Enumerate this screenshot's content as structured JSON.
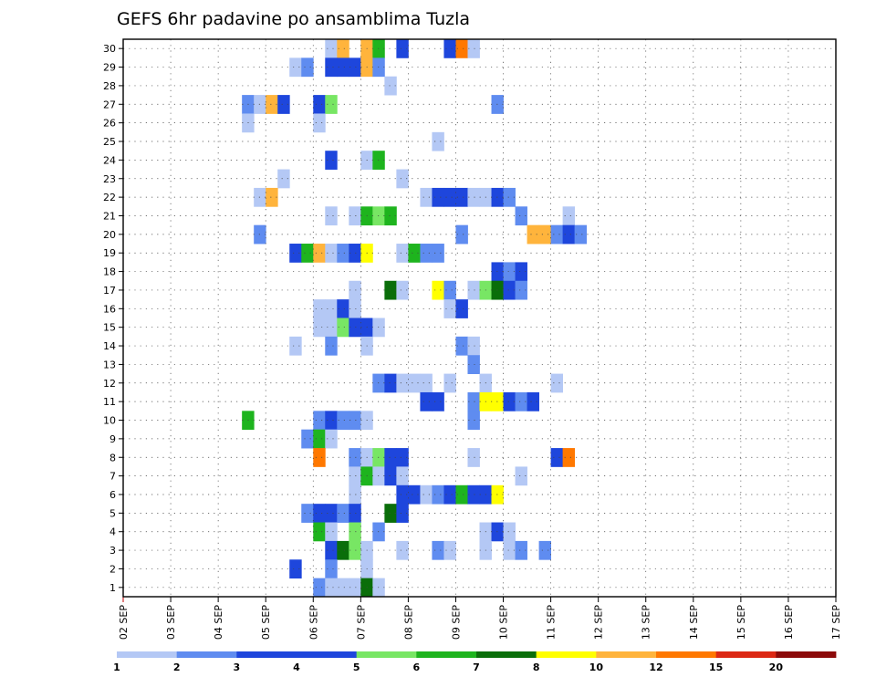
{
  "chart_data": {
    "type": "heatmap",
    "title": "GEFS 6hr padavine po ansamblima Tuzla",
    "xlabel": "",
    "ylabel": "",
    "x_ticks": [
      "02 SEP",
      "03 SEP",
      "04 SEP",
      "05 SEP",
      "06 SEP",
      "07 SEP",
      "08 SEP",
      "09 SEP",
      "10 SEP",
      "11 SEP",
      "12 SEP",
      "13 SEP",
      "14 SEP",
      "15 SEP",
      "16 SEP",
      "17 SEP"
    ],
    "y_ticks": [
      1,
      2,
      3,
      4,
      5,
      6,
      7,
      8,
      9,
      10,
      11,
      12,
      13,
      14,
      15,
      16,
      17,
      18,
      19,
      20,
      21,
      22,
      23,
      24,
      25,
      26,
      27,
      28,
      29,
      30
    ],
    "time_steps": 61,
    "time_step_hours": 6,
    "steps_per_day": 4,
    "grid": true,
    "legend": {
      "position": "bottom",
      "levels": [
        "1",
        "2",
        "3",
        "4",
        "5",
        "6",
        "7",
        "8",
        "10",
        "12",
        "15",
        "20"
      ],
      "colors": [
        "#b4c8f5",
        "#5f8cf0",
        "#1e46dc",
        "#1e46dc",
        "#78e664",
        "#1eb41e",
        "#0a6e0a",
        "#ffff00",
        "#ffb43c",
        "#ff7800",
        "#dc2814",
        "#8c0a0a"
      ]
    },
    "cells": [
      [
        30,
        17,
        1
      ],
      [
        30,
        18,
        10
      ],
      [
        30,
        20,
        10
      ],
      [
        30,
        21,
        6
      ],
      [
        30,
        23,
        3
      ],
      [
        30,
        27,
        3
      ],
      [
        30,
        28,
        12
      ],
      [
        30,
        29,
        1
      ],
      [
        29,
        14,
        1
      ],
      [
        29,
        15,
        2
      ],
      [
        29,
        17,
        3
      ],
      [
        29,
        18,
        3
      ],
      [
        29,
        19,
        3
      ],
      [
        29,
        20,
        10
      ],
      [
        29,
        21,
        2
      ],
      [
        28,
        22,
        1
      ],
      [
        27,
        10,
        2
      ],
      [
        27,
        11,
        1
      ],
      [
        27,
        12,
        10
      ],
      [
        27,
        13,
        3
      ],
      [
        27,
        16,
        4
      ],
      [
        27,
        17,
        5
      ],
      [
        27,
        31,
        2
      ],
      [
        26,
        10,
        1
      ],
      [
        26,
        16,
        1
      ],
      [
        25,
        26,
        1
      ],
      [
        24,
        17,
        3
      ],
      [
        24,
        20,
        1
      ],
      [
        24,
        21,
        6
      ],
      [
        23,
        13,
        1
      ],
      [
        23,
        23,
        1
      ],
      [
        22,
        11,
        1
      ],
      [
        22,
        12,
        10
      ],
      [
        22,
        25,
        1
      ],
      [
        22,
        26,
        4
      ],
      [
        22,
        27,
        3
      ],
      [
        22,
        28,
        4
      ],
      [
        22,
        29,
        1
      ],
      [
        22,
        30,
        1
      ],
      [
        22,
        31,
        3
      ],
      [
        22,
        32,
        2
      ],
      [
        21,
        17,
        1
      ],
      [
        21,
        19,
        1
      ],
      [
        21,
        20,
        6
      ],
      [
        21,
        21,
        5
      ],
      [
        21,
        22,
        6
      ],
      [
        21,
        33,
        2
      ],
      [
        21,
        37,
        1
      ],
      [
        20,
        11,
        2
      ],
      [
        20,
        28,
        2
      ],
      [
        20,
        34,
        10
      ],
      [
        20,
        35,
        10
      ],
      [
        20,
        36,
        2
      ],
      [
        20,
        37,
        3
      ],
      [
        20,
        38,
        2
      ],
      [
        19,
        14,
        3
      ],
      [
        19,
        15,
        6
      ],
      [
        19,
        16,
        10
      ],
      [
        19,
        17,
        1
      ],
      [
        19,
        18,
        2
      ],
      [
        19,
        19,
        4
      ],
      [
        19,
        20,
        8
      ],
      [
        19,
        23,
        1
      ],
      [
        19,
        24,
        6
      ],
      [
        19,
        25,
        2
      ],
      [
        19,
        26,
        2
      ],
      [
        18,
        31,
        3
      ],
      [
        18,
        32,
        2
      ],
      [
        18,
        33,
        4
      ],
      [
        17,
        19,
        1
      ],
      [
        17,
        22,
        7
      ],
      [
        17,
        23,
        1
      ],
      [
        17,
        26,
        8
      ],
      [
        17,
        27,
        2
      ],
      [
        17,
        29,
        1
      ],
      [
        17,
        30,
        5
      ],
      [
        17,
        31,
        7
      ],
      [
        17,
        32,
        3
      ],
      [
        17,
        33,
        2
      ],
      [
        16,
        16,
        1
      ],
      [
        16,
        17,
        1
      ],
      [
        16,
        18,
        4
      ],
      [
        16,
        19,
        1
      ],
      [
        16,
        27,
        1
      ],
      [
        16,
        28,
        3
      ],
      [
        15,
        16,
        1
      ],
      [
        15,
        17,
        1
      ],
      [
        15,
        18,
        5
      ],
      [
        15,
        19,
        3
      ],
      [
        15,
        20,
        4
      ],
      [
        15,
        21,
        1
      ],
      [
        14,
        14,
        1
      ],
      [
        14,
        17,
        2
      ],
      [
        14,
        20,
        1
      ],
      [
        14,
        28,
        2
      ],
      [
        14,
        29,
        1
      ],
      [
        13,
        29,
        2
      ],
      [
        12,
        21,
        2
      ],
      [
        12,
        22,
        3
      ],
      [
        12,
        23,
        1
      ],
      [
        12,
        24,
        1
      ],
      [
        12,
        25,
        1
      ],
      [
        12,
        27,
        1
      ],
      [
        12,
        30,
        1
      ],
      [
        12,
        36,
        1
      ],
      [
        11,
        25,
        3
      ],
      [
        11,
        26,
        3
      ],
      [
        11,
        29,
        2
      ],
      [
        11,
        30,
        9
      ],
      [
        11,
        31,
        9
      ],
      [
        11,
        32,
        3
      ],
      [
        11,
        33,
        2
      ],
      [
        11,
        34,
        3
      ],
      [
        10,
        10,
        6
      ],
      [
        10,
        16,
        2
      ],
      [
        10,
        17,
        3
      ],
      [
        10,
        18,
        2
      ],
      [
        10,
        19,
        2
      ],
      [
        10,
        20,
        1
      ],
      [
        10,
        29,
        2
      ],
      [
        9,
        15,
        2
      ],
      [
        9,
        16,
        6
      ],
      [
        9,
        17,
        1
      ],
      [
        8,
        16,
        12
      ],
      [
        8,
        19,
        2
      ],
      [
        8,
        20,
        1
      ],
      [
        8,
        21,
        5
      ],
      [
        8,
        22,
        3
      ],
      [
        8,
        23,
        3
      ],
      [
        8,
        29,
        1
      ],
      [
        8,
        36,
        3
      ],
      [
        8,
        37,
        12
      ],
      [
        7,
        19,
        1
      ],
      [
        7,
        20,
        6
      ],
      [
        7,
        21,
        1
      ],
      [
        7,
        22,
        4
      ],
      [
        7,
        23,
        1
      ],
      [
        7,
        33,
        1
      ],
      [
        6,
        19,
        1
      ],
      [
        6,
        23,
        4
      ],
      [
        6,
        24,
        3
      ],
      [
        6,
        25,
        1
      ],
      [
        6,
        26,
        2
      ],
      [
        6,
        27,
        3
      ],
      [
        6,
        28,
        6
      ],
      [
        6,
        29,
        4
      ],
      [
        6,
        30,
        4
      ],
      [
        6,
        31,
        9
      ],
      [
        5,
        15,
        2
      ],
      [
        5,
        16,
        3
      ],
      [
        5,
        17,
        3
      ],
      [
        5,
        18,
        2
      ],
      [
        5,
        19,
        3
      ],
      [
        5,
        22,
        7
      ],
      [
        5,
        23,
        3
      ],
      [
        4,
        16,
        6
      ],
      [
        4,
        17,
        1
      ],
      [
        4,
        19,
        5
      ],
      [
        4,
        21,
        2
      ],
      [
        4,
        30,
        1
      ],
      [
        4,
        31,
        4
      ],
      [
        4,
        32,
        1
      ],
      [
        3,
        17,
        4
      ],
      [
        3,
        18,
        7
      ],
      [
        3,
        19,
        5
      ],
      [
        3,
        20,
        1
      ],
      [
        3,
        23,
        1
      ],
      [
        3,
        26,
        2
      ],
      [
        3,
        27,
        1
      ],
      [
        3,
        30,
        1
      ],
      [
        3,
        32,
        1
      ],
      [
        3,
        33,
        2
      ],
      [
        3,
        35,
        2
      ],
      [
        2,
        14,
        3
      ],
      [
        2,
        17,
        2
      ],
      [
        2,
        20,
        1
      ],
      [
        1,
        16,
        2
      ],
      [
        1,
        17,
        1
      ],
      [
        1,
        18,
        1
      ],
      [
        1,
        19,
        1
      ],
      [
        1,
        20,
        7
      ],
      [
        1,
        21,
        1
      ]
    ]
  }
}
